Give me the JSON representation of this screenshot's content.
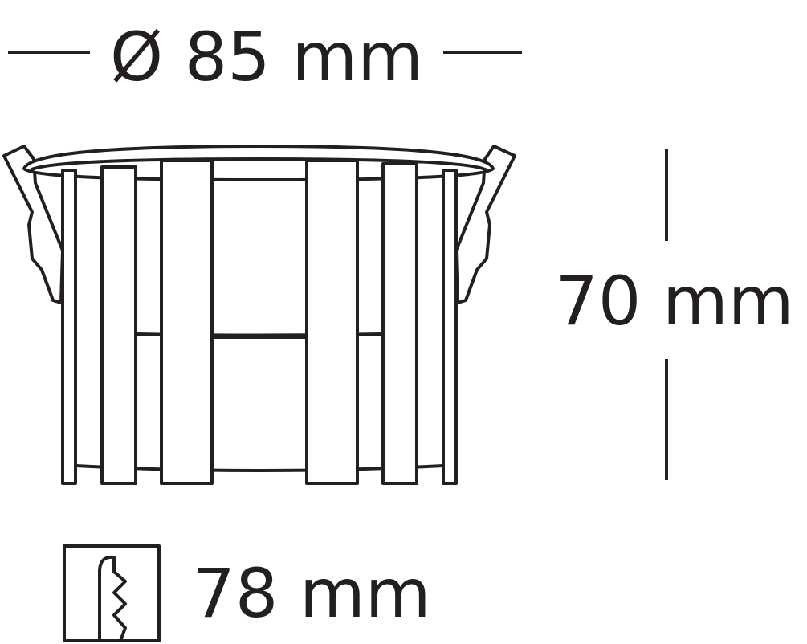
{
  "diameter_label": "Ø 85  mm",
  "height_label": "70 mm",
  "cutout_label": "78 mm",
  "colors": {
    "line": "#231f20",
    "background": "#ffffff"
  },
  "icons": {
    "cutout_symbol": "ceiling-cutout-icon"
  }
}
